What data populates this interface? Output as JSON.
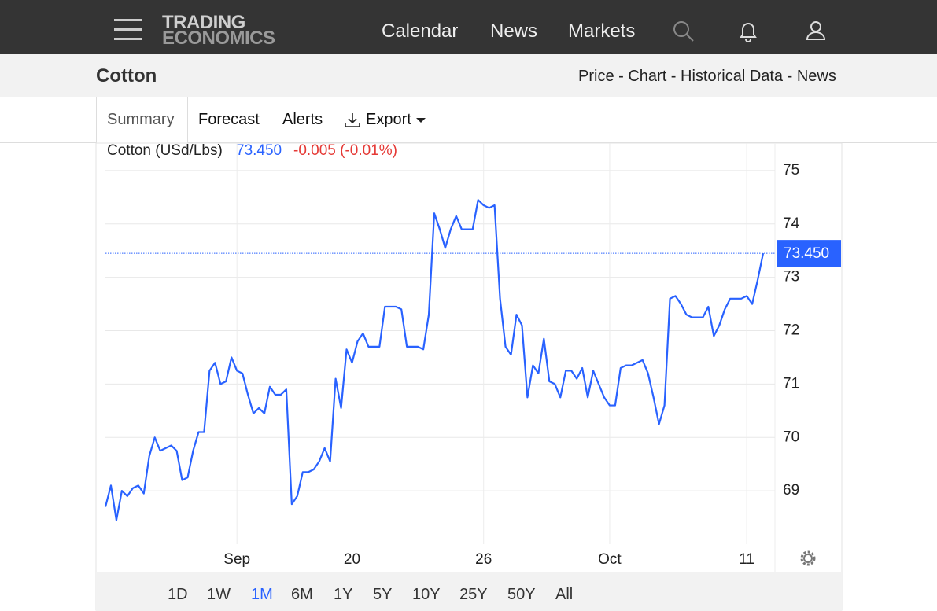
{
  "nav": {
    "logo": [
      "TRADING",
      "ECONOMICS"
    ],
    "menu": [
      "Calendar",
      "News",
      "Markets"
    ]
  },
  "header": {
    "title": "Cotton",
    "links": "Price - Chart - Historical Data - News"
  },
  "tabs": [
    "Summary",
    "Forecast",
    "Alerts",
    "Export"
  ],
  "chart_data": {
    "type": "line",
    "series": [
      {
        "name": "Cotton (USd/Lbs)",
        "color": "#2962ff",
        "values": [
          68.7,
          69.1,
          68.45,
          69.0,
          68.9,
          69.05,
          69.1,
          68.95,
          69.65,
          70.0,
          69.75,
          69.8,
          69.85,
          69.75,
          69.2,
          69.25,
          69.75,
          70.1,
          70.1,
          71.25,
          71.4,
          71.0,
          71.05,
          71.5,
          71.25,
          71.2,
          70.8,
          70.45,
          70.55,
          70.45,
          70.95,
          70.8,
          70.8,
          70.9,
          68.75,
          68.9,
          69.35,
          69.35,
          69.4,
          69.55,
          69.8,
          69.55,
          71.1,
          70.55,
          71.65,
          71.4,
          71.8,
          71.95,
          71.7,
          71.7,
          71.7,
          72.45,
          72.45,
          72.45,
          72.4,
          71.7,
          71.7,
          71.7,
          71.65,
          72.3,
          74.2,
          73.9,
          73.55,
          73.9,
          74.15,
          73.9,
          73.9,
          73.9,
          74.45,
          74.35,
          74.3,
          74.35,
          72.6,
          71.7,
          71.55,
          72.3,
          72.1,
          70.75,
          71.35,
          71.2,
          71.85,
          71.05,
          71.0,
          70.75,
          71.25,
          71.25,
          71.1,
          71.3,
          70.75,
          71.25,
          71.0,
          70.75,
          70.6,
          70.6,
          71.3,
          71.35,
          71.35,
          71.4,
          71.45,
          71.2,
          70.75,
          70.25,
          70.6,
          72.6,
          72.65,
          72.5,
          72.3,
          72.25,
          72.25,
          72.25,
          72.45,
          71.9,
          72.1,
          72.4,
          72.6,
          72.6,
          72.6,
          72.65,
          72.5,
          72.95,
          73.45
        ]
      }
    ],
    "price": "73.450",
    "change": "-0.005 (-0.01%)",
    "categories": [
      null,
      null,
      null,
      null,
      null,
      null,
      null,
      null,
      null,
      null,
      null,
      null,
      null,
      null,
      null,
      null,
      null,
      null,
      null,
      null,
      null,
      null,
      null,
      null,
      "Sep",
      null,
      null,
      null,
      null,
      null,
      null,
      null,
      null,
      null,
      null,
      null,
      null,
      null,
      null,
      null,
      null,
      null,
      null,
      null,
      null,
      "20",
      null,
      null,
      null,
      null,
      null,
      null,
      null,
      null,
      null,
      null,
      null,
      null,
      null,
      null,
      null,
      null,
      null,
      null,
      null,
      null,
      null,
      null,
      null,
      "26",
      null,
      null,
      null,
      null,
      null,
      null,
      null,
      null,
      null,
      null,
      null,
      null,
      null,
      null,
      null,
      null,
      null,
      null,
      null,
      null,
      null,
      null,
      "Oct",
      null,
      null,
      null,
      null,
      null,
      null,
      null,
      null,
      null,
      null,
      null,
      null,
      null,
      null,
      null,
      null,
      null,
      null,
      null,
      null,
      null,
      null,
      null,
      null,
      "11",
      null,
      null,
      null
    ],
    "ylim": [
      68,
      75.5
    ],
    "yticks": [
      69,
      70,
      71,
      72,
      73,
      74,
      75
    ],
    "grid": true
  },
  "ranges": [
    "1D",
    "1W",
    "1M",
    "6M",
    "1Y",
    "5Y",
    "10Y",
    "25Y",
    "50Y",
    "All"
  ],
  "active_range": "1M"
}
